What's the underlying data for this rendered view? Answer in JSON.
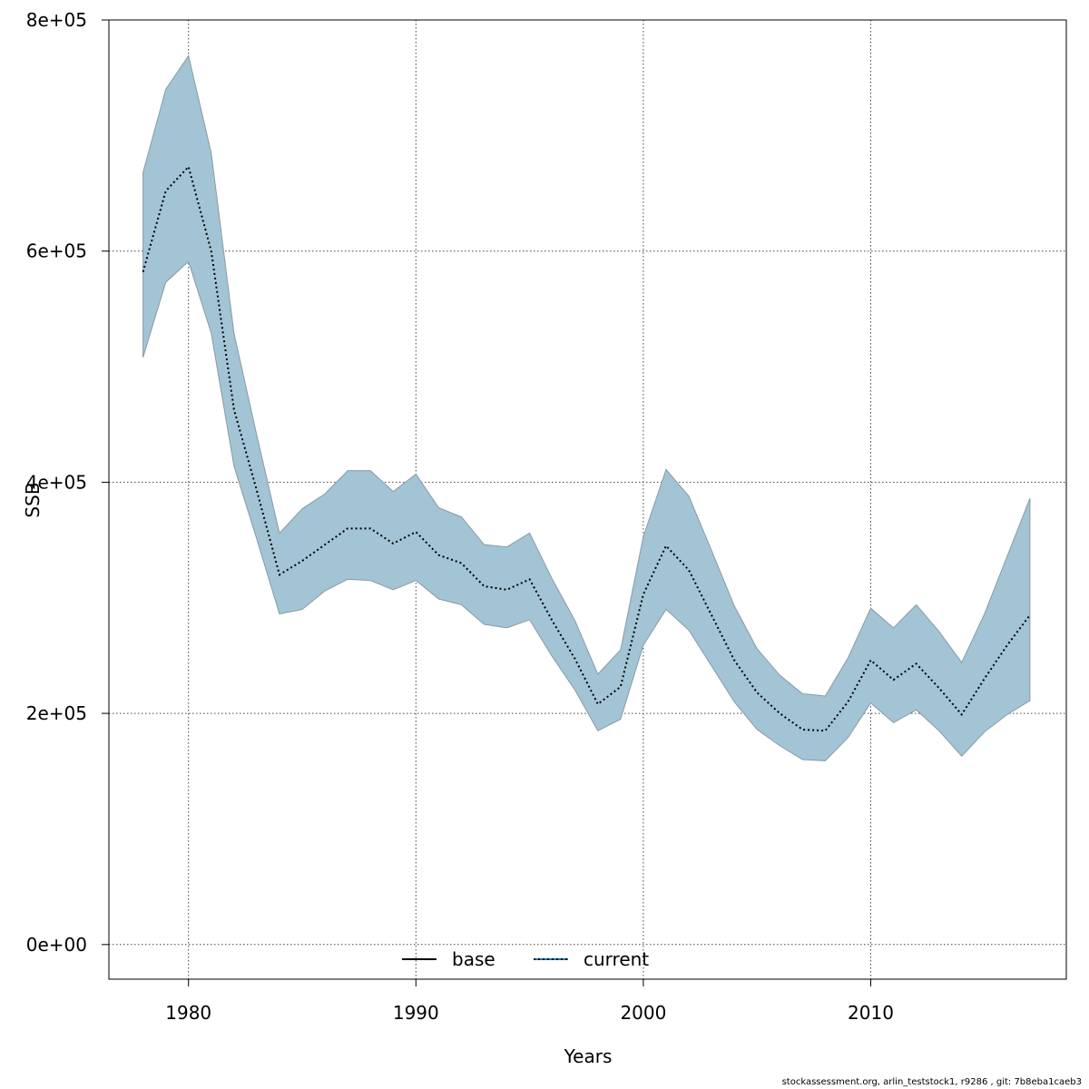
{
  "chart_data": {
    "type": "area",
    "xlabel": "Years",
    "ylabel": "SSB",
    "xlim": [
      1976.5,
      2018.6
    ],
    "ylim": [
      -30000,
      800000
    ],
    "x_ticks": [
      1980,
      1990,
      2000,
      2010
    ],
    "x_tick_labels": [
      "1980",
      "1990",
      "2000",
      "2010"
    ],
    "y_ticks": [
      0,
      200000,
      400000,
      600000,
      800000
    ],
    "y_tick_labels": [
      "0e+00",
      "2e+05",
      "4e+05",
      "6e+05",
      "8e+05"
    ],
    "grid": true,
    "legend_position": "bottom",
    "band_color": "#a2c4d5",
    "band_edge_color": "#8a9aa4",
    "x": [
      1978,
      1979,
      1980,
      1981,
      1982,
      1983,
      1984,
      1985,
      1986,
      1987,
      1988,
      1989,
      1990,
      1991,
      1992,
      1993,
      1994,
      1995,
      1996,
      1997,
      1998,
      1999,
      2000,
      2001,
      2002,
      2003,
      2004,
      2005,
      2006,
      2007,
      2008,
      2009,
      2010,
      2011,
      2012,
      2013,
      2014,
      2015,
      2016,
      2017
    ],
    "series": [
      {
        "name": "current",
        "style": "dotted",
        "color": "#000000",
        "values": [
          582000,
          652000,
          673000,
          600000,
          463000,
          393000,
          320000,
          332000,
          346000,
          360000,
          360000,
          347000,
          357000,
          337000,
          330000,
          310000,
          307000,
          316000,
          280000,
          247000,
          208000,
          223000,
          303000,
          345000,
          324000,
          285000,
          246000,
          218000,
          200000,
          186000,
          185000,
          210000,
          246000,
          229000,
          243000,
          222000,
          199000,
          230000,
          259000,
          285000
        ]
      },
      {
        "name": "current-upper",
        "values": [
          668000,
          740000,
          769000,
          685000,
          529000,
          441000,
          356000,
          377000,
          390000,
          410000,
          410000,
          392000,
          407000,
          378000,
          370000,
          346000,
          344000,
          356000,
          316000,
          280000,
          234000,
          255000,
          353000,
          411000,
          388000,
          341000,
          293000,
          256000,
          233000,
          217000,
          215000,
          248000,
          291000,
          274000,
          294000,
          271000,
          244000,
          286000,
          336000,
          386000
        ]
      },
      {
        "name": "current-lower",
        "values": [
          508000,
          573000,
          591000,
          529000,
          414000,
          351000,
          286000,
          290000,
          306000,
          316000,
          315000,
          307000,
          315000,
          299000,
          294000,
          277000,
          274000,
          281000,
          249000,
          220000,
          185000,
          195000,
          259000,
          290000,
          272000,
          241000,
          210000,
          186000,
          172000,
          160000,
          159000,
          179000,
          209000,
          192000,
          203000,
          185000,
          163000,
          184000,
          199000,
          211000
        ]
      }
    ],
    "legend": [
      {
        "label": "base",
        "style": "solid",
        "color": "#000000"
      },
      {
        "label": "current",
        "style": "dotted",
        "color": "#000000",
        "base_color": "#1f77b4"
      }
    ]
  },
  "footer": {
    "text": "stockassessment.org, arlin_teststock1, r9286 , git: 7b8eba1caeb3"
  }
}
